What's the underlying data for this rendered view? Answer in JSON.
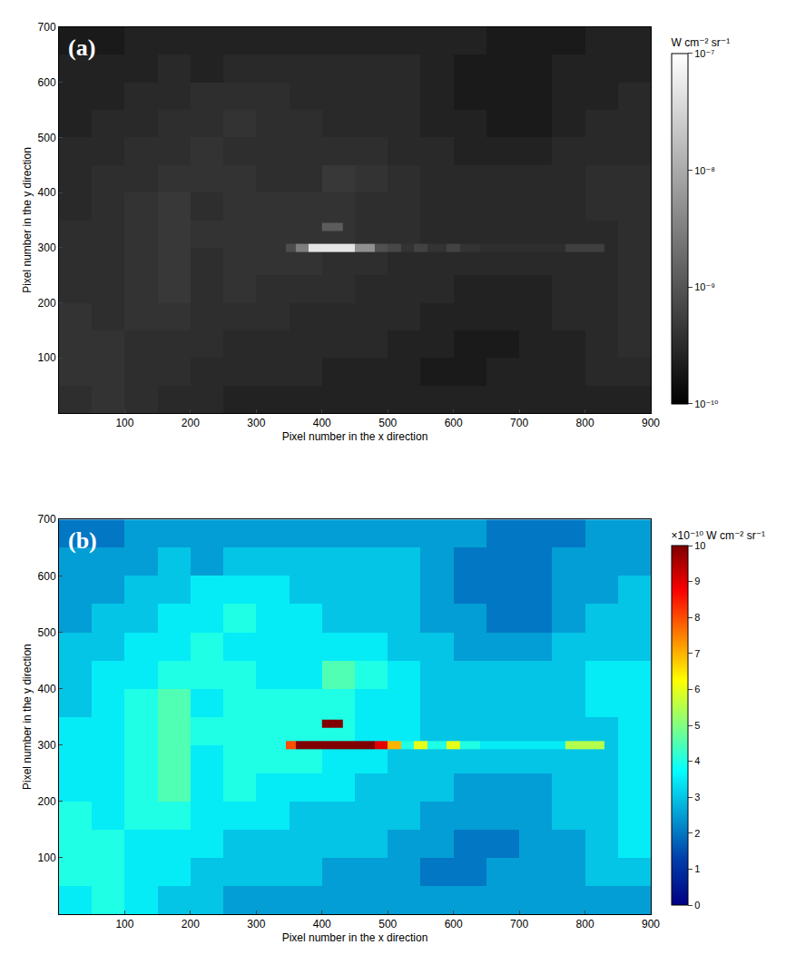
{
  "chart_data": [
    {
      "type": "heatmap",
      "label": "(a)",
      "color": "gray",
      "log": true,
      "xlabel": "Pixel number in the x direction",
      "ylabel": "Pixel number in the y direction",
      "xlim": [
        0,
        900
      ],
      "ylim": [
        0,
        700
      ],
      "xticks": [
        100,
        200,
        300,
        400,
        500,
        600,
        700,
        800,
        900
      ],
      "yticks": [
        100,
        200,
        300,
        400,
        500,
        600,
        700
      ],
      "colorbar": {
        "title": "W cm⁻² sr⁻¹",
        "range": [
          1e-10,
          1e-07
        ],
        "ticks": [
          {
            "value": 1e-10,
            "label": "10⁻¹⁰"
          },
          {
            "value": 1e-09,
            "label": "10⁻⁹"
          },
          {
            "value": 1e-08,
            "label": "10⁻⁸"
          },
          {
            "value": 1e-07,
            "label": "10⁻⁷"
          }
        ]
      },
      "cells": [
        {
          "x_edges": [
            0,
            50,
            100,
            150,
            200,
            250,
            300,
            350,
            400,
            450,
            500,
            550,
            600,
            650,
            700,
            750,
            800,
            850,
            900
          ],
          "y_edges": [
            0,
            50,
            100,
            150,
            200,
            250,
            300,
            350,
            400,
            450,
            500,
            550,
            600,
            650,
            700
          ],
          "z": [
            [
              3.5e-10,
              4e-10,
              3.5e-10,
              3e-10,
              3e-10,
              2.5e-10,
              2.5e-10,
              2.5e-10,
              2.5e-10,
              2.5e-10,
              2.5e-10,
              2.5e-10,
              2.5e-10,
              2.5e-10,
              2.5e-10,
              2.5e-10,
              2.5e-10,
              2.5e-10
            ],
            [
              4e-10,
              4e-10,
              3.5e-10,
              3.5e-10,
              3e-10,
              3e-10,
              3e-10,
              3e-10,
              2.5e-10,
              2.5e-10,
              2.5e-10,
              2e-10,
              2e-10,
              2.5e-10,
              2.5e-10,
              2.5e-10,
              3e-10,
              3e-10
            ],
            [
              4e-10,
              4e-10,
              3.5e-10,
              3.5e-10,
              3.5e-10,
              3e-10,
              3e-10,
              3e-10,
              3e-10,
              3e-10,
              2.5e-10,
              2.5e-10,
              2e-10,
              2e-10,
              2.5e-10,
              2.5e-10,
              3e-10,
              3.5e-10
            ],
            [
              4e-10,
              3.5e-10,
              4e-10,
              4e-10,
              3.5e-10,
              3.5e-10,
              3.5e-10,
              3e-10,
              3e-10,
              3e-10,
              3e-10,
              2.5e-10,
              2.5e-10,
              2.5e-10,
              2.5e-10,
              3e-10,
              3e-10,
              3.5e-10
            ],
            [
              3.5e-10,
              3.5e-10,
              4e-10,
              4.5e-10,
              3.5e-10,
              4e-10,
              3.5e-10,
              3.5e-10,
              3.5e-10,
              3e-10,
              3e-10,
              3e-10,
              2.5e-10,
              2.5e-10,
              2.5e-10,
              3e-10,
              3e-10,
              3.5e-10
            ],
            [
              3.5e-10,
              3.5e-10,
              4e-10,
              4.5e-10,
              3.5e-10,
              4e-10,
              4e-10,
              4e-10,
              3.5e-10,
              3.5e-10,
              3e-10,
              3e-10,
              3e-10,
              3e-10,
              3e-10,
              3e-10,
              3e-10,
              3.5e-10
            ],
            [
              3.5e-10,
              3.5e-10,
              4e-10,
              4.5e-10,
              4e-10,
              4e-10,
              4e-10,
              4e-10,
              4e-10,
              3.5e-10,
              3.5e-10,
              3e-10,
              3e-10,
              3e-10,
              3e-10,
              3e-10,
              3e-10,
              3.5e-10
            ],
            [
              3e-10,
              3.5e-10,
              4e-10,
              4.5e-10,
              3.5e-10,
              4e-10,
              4e-10,
              4e-10,
              4e-10,
              3.5e-10,
              3.5e-10,
              3e-10,
              3e-10,
              3e-10,
              3e-10,
              3e-10,
              3.5e-10,
              3.5e-10
            ],
            [
              3e-10,
              3.5e-10,
              3.5e-10,
              4e-10,
              4e-10,
              4e-10,
              3.5e-10,
              3.5e-10,
              4.5e-10,
              4e-10,
              3.5e-10,
              3e-10,
              3e-10,
              3e-10,
              3e-10,
              3e-10,
              3.5e-10,
              3.5e-10
            ],
            [
              3e-10,
              3e-10,
              3.5e-10,
              3.5e-10,
              4e-10,
              3.5e-10,
              3.5e-10,
              3.5e-10,
              3.5e-10,
              3.5e-10,
              3e-10,
              3e-10,
              2.5e-10,
              2.5e-10,
              2.5e-10,
              3e-10,
              3e-10,
              3e-10
            ],
            [
              2.5e-10,
              3e-10,
              3e-10,
              3.5e-10,
              3.5e-10,
              4e-10,
              3.5e-10,
              3.5e-10,
              3e-10,
              3e-10,
              3e-10,
              2.5e-10,
              2.5e-10,
              2e-10,
              2e-10,
              2.5e-10,
              3e-10,
              3e-10
            ],
            [
              2.5e-10,
              2.5e-10,
              3e-10,
              3e-10,
              3.5e-10,
              3.5e-10,
              3.5e-10,
              3e-10,
              3e-10,
              3e-10,
              3e-10,
              2.5e-10,
              2e-10,
              2e-10,
              2e-10,
              2.5e-10,
              2.5e-10,
              3e-10
            ],
            [
              2.5e-10,
              2.5e-10,
              2.5e-10,
              3e-10,
              2.5e-10,
              3e-10,
              3e-10,
              3e-10,
              3e-10,
              3e-10,
              3e-10,
              2.5e-10,
              2e-10,
              2e-10,
              2e-10,
              2.5e-10,
              2.5e-10,
              2.5e-10
            ],
            [
              2e-10,
              2e-10,
              2.5e-10,
              2.5e-10,
              2.5e-10,
              2.5e-10,
              2.5e-10,
              2.5e-10,
              2.5e-10,
              2.5e-10,
              2.5e-10,
              2.5e-10,
              2.5e-10,
              2e-10,
              2e-10,
              2e-10,
              2.5e-10,
              2.5e-10
            ]
          ]
        },
        {
          "x_edges": [
            345,
            360,
            380,
            450,
            480,
            500,
            520,
            540,
            560,
            590,
            610,
            640,
            770,
            830
          ],
          "y_edges": [
            293,
            307
          ],
          "z": [
            [
              8e-10,
              3e-09,
              5e-08,
              5e-09,
              9e-10,
              7e-10,
              4e-10,
              6e-10,
              4e-10,
              6e-10,
              4e-10,
              3.5e-10,
              5.5e-10
            ]
          ]
        },
        {
          "x_edges": [
            400,
            432
          ],
          "y_edges": [
            330,
            345
          ],
          "z": [
            [
              1.2e-09
            ]
          ]
        }
      ]
    },
    {
      "type": "heatmap",
      "label": "(b)",
      "color": "jet",
      "xlabel": "Pixel number in the x direction",
      "ylabel": "Pixel number in the y direction",
      "xlim": [
        0,
        900
      ],
      "ylim": [
        0,
        700
      ],
      "xticks": [
        100,
        200,
        300,
        400,
        500,
        600,
        700,
        800,
        900
      ],
      "yticks": [
        100,
        200,
        300,
        400,
        500,
        600,
        700
      ],
      "colorbar": {
        "title": "×10⁻¹⁰ W cm⁻² sr⁻¹",
        "range": [
          0,
          10
        ],
        "ticks": [
          0,
          1,
          2,
          3,
          4,
          5,
          6,
          7,
          8,
          9,
          10
        ]
      },
      "cells": [
        {
          "x_edges": [
            0,
            50,
            100,
            150,
            200,
            250,
            300,
            350,
            400,
            450,
            500,
            550,
            600,
            650,
            700,
            750,
            800,
            850,
            900
          ],
          "y_edges": [
            0,
            50,
            100,
            150,
            200,
            250,
            300,
            350,
            400,
            450,
            500,
            550,
            600,
            650,
            700
          ],
          "z": [
            [
              3.5,
              4,
              3.5,
              3,
              3,
              2.5,
              2.5,
              2.5,
              2.5,
              2.5,
              2.5,
              2.5,
              2.5,
              2.5,
              2.5,
              2.5,
              2.5,
              2.5
            ],
            [
              4,
              4,
              3.5,
              3.5,
              3,
              3,
              3,
              3,
              2.5,
              2.5,
              2.5,
              2,
              2,
              2.5,
              2.5,
              2.5,
              3,
              3
            ],
            [
              4,
              4,
              3.5,
              3.5,
              3.5,
              3,
              3,
              3,
              3,
              3,
              2.5,
              2.5,
              2,
              2,
              2.5,
              2.5,
              3,
              3.5
            ],
            [
              4,
              3.5,
              4,
              4,
              3.5,
              3.5,
              3.5,
              3,
              3,
              3,
              3,
              2.5,
              2.5,
              2.5,
              2.5,
              3,
              3,
              3.5
            ],
            [
              3.5,
              3.5,
              4,
              4.5,
              3.5,
              4,
              3.5,
              3.5,
              3.5,
              3,
              3,
              3,
              2.5,
              2.5,
              2.5,
              3,
              3,
              3.5
            ],
            [
              3.5,
              3.5,
              4,
              4.5,
              3.5,
              4,
              4,
              4,
              3.5,
              3.5,
              3,
              3,
              3,
              3,
              3,
              3,
              3,
              3.5
            ],
            [
              3.5,
              3.5,
              4,
              4.5,
              4,
              4,
              4,
              4,
              4,
              3.5,
              3.5,
              3,
              3,
              3,
              3,
              3,
              3,
              3.5
            ],
            [
              3,
              3.5,
              4,
              4.5,
              3.5,
              4,
              4,
              4,
              4,
              3.5,
              3.5,
              3,
              3,
              3,
              3,
              3,
              3.5,
              3.5
            ],
            [
              3,
              3.5,
              3.5,
              4,
              4,
              4,
              3.5,
              3.5,
              4.5,
              4,
              3.5,
              3,
              3,
              3,
              3,
              3,
              3.5,
              3.5
            ],
            [
              3,
              3,
              3.5,
              3.5,
              4,
              3.5,
              3.5,
              3.5,
              3.5,
              3.5,
              3,
              3,
              2.5,
              2.5,
              2.5,
              3,
              3,
              3
            ],
            [
              2.5,
              3,
              3,
              3.5,
              3.5,
              4,
              3.5,
              3.5,
              3,
              3,
              3,
              2.5,
              2.5,
              2,
              2,
              2.5,
              3,
              3
            ],
            [
              2.5,
              2.5,
              3,
              3,
              3.5,
              3.5,
              3.5,
              3,
              3,
              3,
              3,
              2.5,
              2,
              2,
              2,
              2.5,
              2.5,
              3
            ],
            [
              2.5,
              2.5,
              2.5,
              3,
              2.5,
              3,
              3,
              3,
              3,
              3,
              3,
              2.5,
              2,
              2,
              2,
              2.5,
              2.5,
              2.5
            ],
            [
              2,
              2,
              2.5,
              2.5,
              2.5,
              2.5,
              2.5,
              2.5,
              2.5,
              2.5,
              2.5,
              2.5,
              2.5,
              2,
              2,
              2,
              2.5,
              2.5
            ]
          ]
        },
        {
          "x_edges": [
            345,
            360,
            380,
            450,
            480,
            500,
            520,
            540,
            560,
            590,
            610,
            640,
            770,
            830
          ],
          "y_edges": [
            293,
            307
          ],
          "z": [
            [
              8,
              30,
              500,
              50,
              9,
              7,
              4,
              6,
              4,
              6,
              4,
              3.5,
              5.5
            ]
          ]
        },
        {
          "x_edges": [
            400,
            432
          ],
          "y_edges": [
            330,
            345
          ],
          "z": [
            [
              12
            ]
          ]
        }
      ]
    }
  ]
}
